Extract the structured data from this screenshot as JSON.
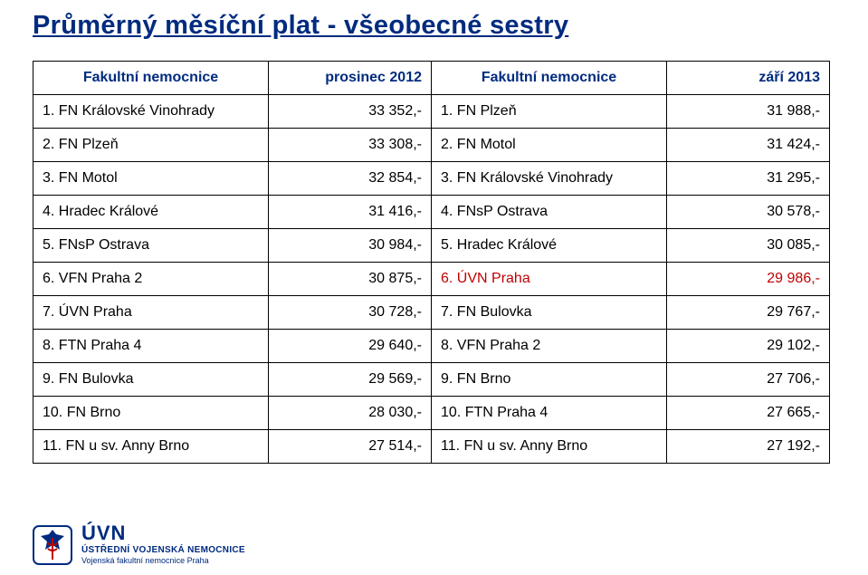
{
  "title": "Průměrný měsíční plat - všeobecné sestry",
  "colors": {
    "accent": "#002b7f",
    "highlight": "#c00000",
    "border": "#000000",
    "background": "#ffffff"
  },
  "table": {
    "headers": {
      "left_name": "Fakultní nemocnice",
      "left_period": "prosinec 2012",
      "right_name": "Fakultní nemocnice",
      "right_period": "září 2013"
    },
    "rows": [
      {
        "l_name": "1. FN Královské Vinohrady",
        "l_val": "33 352,-",
        "r_name": "1. FN Plzeň",
        "r_val": "31 988,-",
        "hl": false
      },
      {
        "l_name": "2. FN Plzeň",
        "l_val": "33 308,-",
        "r_name": "2. FN Motol",
        "r_val": "31 424,-",
        "hl": false
      },
      {
        "l_name": "3. FN Motol",
        "l_val": "32 854,-",
        "r_name": "3. FN Královské Vinohrady",
        "r_val": "31 295,-",
        "hl": false
      },
      {
        "l_name": "4. Hradec Králové",
        "l_val": "31 416,-",
        "r_name": "4. FNsP Ostrava",
        "r_val": "30 578,-",
        "hl": false
      },
      {
        "l_name": "5. FNsP Ostrava",
        "l_val": "30 984,-",
        "r_name": "5. Hradec Králové",
        "r_val": "30 085,-",
        "hl": false
      },
      {
        "l_name": "6. VFN Praha 2",
        "l_val": "30 875,-",
        "r_name": "6. ÚVN Praha",
        "r_val": "29 986,-",
        "hl": true
      },
      {
        "l_name": "7. ÚVN Praha",
        "l_val": "30 728,-",
        "r_name": "7. FN Bulovka",
        "r_val": "29 767,-",
        "hl": false
      },
      {
        "l_name": "8. FTN Praha 4",
        "l_val": "29 640,-",
        "r_name": "8. VFN Praha 2",
        "r_val": "29 102,-",
        "hl": false
      },
      {
        "l_name": "9. FN Bulovka",
        "l_val": "29 569,-",
        "r_name": "9. FN Brno",
        "r_val": "27 706,-",
        "hl": false
      },
      {
        "l_name": "10. FN Brno",
        "l_val": "28 030,-",
        "r_name": "10. FTN Praha 4",
        "r_val": "27 665,-",
        "hl": false
      },
      {
        "l_name": "11. FN u sv. Anny Brno",
        "l_val": "27 514,-",
        "r_name": "11. FN u sv. Anny Brno",
        "r_val": "27 192,-",
        "hl": false
      }
    ]
  },
  "footer": {
    "brand": "ÚVN",
    "line2": "ÚSTŘEDNÍ VOJENSKÁ NEMOCNICE",
    "line3": "Vojenská fakultní nemocnice Praha"
  }
}
